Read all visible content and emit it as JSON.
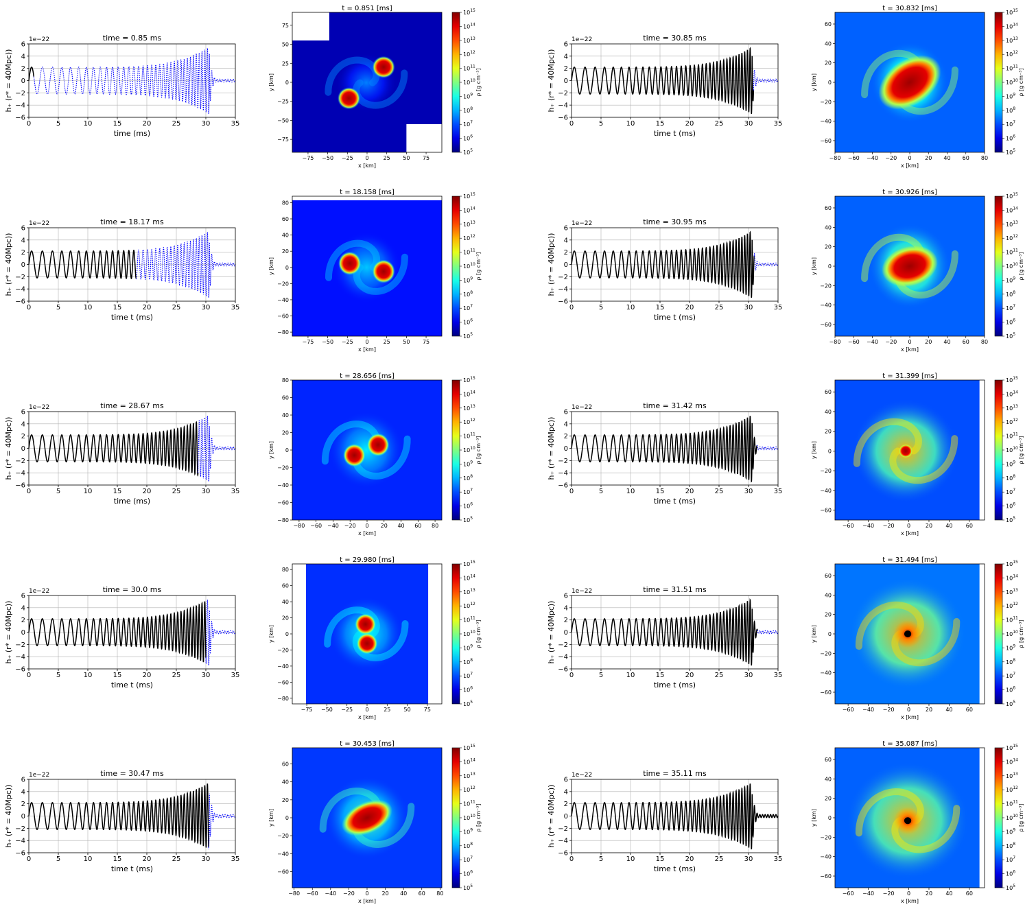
{
  "figure": {
    "layout": "5 rows x 2 panel pairs; each pair = gravitational-wave strain plot + density snapshot",
    "colormap": "jet",
    "colors": {
      "past_strain": "#000000",
      "future_strain": "#0000ff",
      "grid": "#b0b0b0",
      "black_hole": "#000000"
    }
  },
  "chart_data": [
    {
      "id": "r1c1-wave",
      "type": "line",
      "title": "time = 0.85 ms",
      "xlabel": "time (ms)",
      "ylabel": "h₊ (r* = 40Mpc))",
      "offset_text": "1e−22",
      "xlim": [
        0,
        35
      ],
      "ylim": [
        -6,
        6
      ],
      "xticks": [
        "0",
        "5",
        "10",
        "15",
        "20",
        "25",
        "30",
        "35"
      ],
      "yticks": [
        "−6",
        "−4",
        "−2",
        "0",
        "2",
        "4",
        "6"
      ],
      "grid": true,
      "t_now": 0.85,
      "series": [
        {
          "style": "solid",
          "color": "#000000",
          "t_range": [
            0,
            0.85
          ]
        },
        {
          "style": "dotted",
          "color": "#0000ff",
          "t_range": [
            0.85,
            35
          ]
        }
      ]
    },
    {
      "id": "r1c2-density",
      "type": "heatmap",
      "title": "t = 0.851 [ms]",
      "xlabel": "x [km]",
      "ylabel": "y [km]",
      "cbar_label": "ρ [g cm⁻³]",
      "colorscale": "log",
      "vmin_exp": 5,
      "vmax_exp": 15,
      "xlim": [
        -95,
        95
      ],
      "ylim": [
        -92,
        92
      ],
      "xticks": [
        "−75",
        "−50",
        "−25",
        "0",
        "25",
        "50",
        "75"
      ],
      "yticks": [
        "−75",
        "−50",
        "−25",
        "0",
        "25",
        "50",
        "75"
      ],
      "background_level": 0.05,
      "blank_regions": [
        [
          -95,
          -48,
          55,
          92
        ],
        [
          50,
          95,
          -92,
          -55
        ]
      ],
      "bodies": [
        {
          "x": -23,
          "y": -21,
          "r": 10,
          "kind": "star"
        },
        {
          "x": 21,
          "y": 20,
          "r": 10,
          "kind": "star"
        }
      ],
      "halo_level": 0.25,
      "halo_extent": 36
    },
    {
      "id": "r1c3-wave",
      "type": "line",
      "title": "time = 30.85 ms",
      "xlabel": "time t (ms)",
      "ylabel": "h₊ (r* = 40Mpc))",
      "offset_text": "1e−22",
      "xlim": [
        0,
        35
      ],
      "ylim": [
        -6,
        6
      ],
      "xticks": [
        "0",
        "5",
        "10",
        "15",
        "20",
        "25",
        "30",
        "35"
      ],
      "yticks": [
        "−6",
        "−4",
        "−2",
        "0",
        "2",
        "4",
        "6"
      ],
      "grid": true,
      "t_now": 30.85,
      "series": [
        {
          "style": "solid",
          "color": "#000000",
          "t_range": [
            0,
            30.85
          ]
        },
        {
          "style": "dotted",
          "color": "#0000ff",
          "t_range": [
            30.85,
            35
          ]
        }
      ]
    },
    {
      "id": "r1c4-density",
      "type": "heatmap",
      "title": "t = 30.832 [ms]",
      "xlabel": "x [km]",
      "ylabel": "y [km]",
      "cbar_label": "ρ [g cm⁻³]",
      "colorscale": "log",
      "vmin_exp": 5,
      "vmax_exp": 15,
      "xlim": [
        -80,
        80
      ],
      "ylim": [
        -72,
        72
      ],
      "xticks": [
        "−80",
        "−60",
        "−40",
        "−20",
        "0",
        "20",
        "40",
        "60",
        "80"
      ],
      "yticks": [
        "−60",
        "−40",
        "−20",
        "0",
        "20",
        "40",
        "60"
      ],
      "background_level": 0.22,
      "bodies": [
        {
          "x": 0,
          "y": 0,
          "r": 16,
          "kind": "merged",
          "stretch": 1.6,
          "angle": -35
        }
      ],
      "halo_level": 0.55,
      "halo_extent": 38
    },
    {
      "id": "r2c1-wave",
      "type": "line",
      "title": "time = 18.17 ms",
      "xlabel": "time t (ms)",
      "ylabel": "h₊ (r* = 40Mpc))",
      "offset_text": "1e−22",
      "xlim": [
        0,
        35
      ],
      "ylim": [
        -6,
        6
      ],
      "xticks": [
        "0",
        "5",
        "10",
        "15",
        "20",
        "25",
        "30",
        "35"
      ],
      "yticks": [
        "−6",
        "−4",
        "−2",
        "0",
        "2",
        "4",
        "6"
      ],
      "grid": true,
      "t_now": 18.17,
      "series": [
        {
          "style": "solid",
          "color": "#000000",
          "t_range": [
            0,
            18.17
          ]
        },
        {
          "style": "dotted",
          "color": "#0000ff",
          "t_range": [
            18.17,
            35
          ]
        }
      ]
    },
    {
      "id": "r2c2-density",
      "type": "heatmap",
      "title": "t = 18.158 [ms]",
      "xlabel": "x [km]",
      "ylabel": "y [km]",
      "cbar_label": "ρ [g cm⁻³]",
      "colorscale": "log",
      "vmin_exp": 5,
      "vmax_exp": 15,
      "xlim": [
        -95,
        95
      ],
      "ylim": [
        -85,
        88
      ],
      "xticks": [
        "−75",
        "−50",
        "−25",
        "0",
        "25",
        "50",
        "75"
      ],
      "yticks": [
        "−80",
        "−60",
        "−40",
        "−20",
        "0",
        "20",
        "40",
        "60",
        "80"
      ],
      "background_level": 0.14,
      "blank_regions": [
        [
          -95,
          95,
          83,
          88
        ]
      ],
      "bodies": [
        {
          "x": -22,
          "y": 5,
          "r": 10,
          "kind": "star"
        },
        {
          "x": 21,
          "y": -5,
          "r": 10,
          "kind": "star"
        }
      ],
      "halo_level": 0.32,
      "halo_extent": 40
    },
    {
      "id": "r2c3-wave",
      "type": "line",
      "title": "time = 30.95 ms",
      "xlabel": "time t (ms)",
      "ylabel": "h₊ (r* = 40Mpc))",
      "offset_text": "1e−22",
      "xlim": [
        0,
        35
      ],
      "ylim": [
        -6,
        6
      ],
      "xticks": [
        "0",
        "5",
        "10",
        "15",
        "20",
        "25",
        "30",
        "35"
      ],
      "yticks": [
        "−6",
        "−4",
        "−2",
        "0",
        "2",
        "4",
        "6"
      ],
      "grid": true,
      "t_now": 30.95,
      "series": [
        {
          "style": "solid",
          "color": "#000000",
          "t_range": [
            0,
            30.95
          ]
        },
        {
          "style": "dotted",
          "color": "#0000ff",
          "t_range": [
            30.95,
            35
          ]
        }
      ]
    },
    {
      "id": "r2c4-density",
      "type": "heatmap",
      "title": "t = 30.926 [ms]",
      "xlabel": "x [km]",
      "ylabel": "y [km]",
      "cbar_label": "ρ [g cm⁻³]",
      "colorscale": "log",
      "vmin_exp": 5,
      "vmax_exp": 15,
      "xlim": [
        -80,
        80
      ],
      "ylim": [
        -72,
        72
      ],
      "xticks": [
        "−80",
        "−60",
        "−40",
        "−20",
        "0",
        "20",
        "40",
        "60",
        "80"
      ],
      "yticks": [
        "−60",
        "−40",
        "−20",
        "0",
        "20",
        "40",
        "60"
      ],
      "background_level": 0.22,
      "bodies": [
        {
          "x": 0,
          "y": 0,
          "r": 14,
          "kind": "merged",
          "stretch": 1.5,
          "angle": -15
        }
      ],
      "halo_level": 0.6,
      "halo_extent": 40
    },
    {
      "id": "r3c1-wave",
      "type": "line",
      "title": "time = 28.67 ms",
      "xlabel": "time (ms)",
      "ylabel": "h₊ (r* = 40Mpc))",
      "offset_text": "1e−22",
      "xlim": [
        0,
        35
      ],
      "ylim": [
        -6,
        6
      ],
      "xticks": [
        "0",
        "5",
        "10",
        "15",
        "20",
        "25",
        "30",
        "35"
      ],
      "yticks": [
        "−6",
        "−4",
        "−2",
        "0",
        "2",
        "4",
        "6"
      ],
      "grid": true,
      "t_now": 28.67,
      "series": [
        {
          "style": "solid",
          "color": "#000000",
          "t_range": [
            0,
            28.67
          ]
        },
        {
          "style": "dotted",
          "color": "#0000ff",
          "t_range": [
            28.67,
            35
          ]
        }
      ]
    },
    {
      "id": "r3c2-density",
      "type": "heatmap",
      "title": "t = 28.656 [ms]",
      "xlabel": "x [km]",
      "ylabel": "y [km]",
      "cbar_label": "ρ [g cm⁻³]",
      "colorscale": "log",
      "vmin_exp": 5,
      "vmax_exp": 15,
      "xlim": [
        -88,
        88
      ],
      "ylim": [
        -80,
        80
      ],
      "xticks": [
        "−80",
        "−60",
        "−40",
        "−20",
        "0",
        "20",
        "40",
        "60",
        "80"
      ],
      "yticks": [
        "−80",
        "−60",
        "−40",
        "−20",
        "0",
        "20",
        "40",
        "60",
        "80"
      ],
      "background_level": 0.16,
      "bodies": [
        {
          "x": -15,
          "y": -6,
          "r": 9,
          "kind": "star"
        },
        {
          "x": 13,
          "y": 6,
          "r": 9,
          "kind": "star"
        }
      ],
      "halo_level": 0.36,
      "halo_extent": 40
    },
    {
      "id": "r3c3-wave",
      "type": "line",
      "title": "time = 31.42 ms",
      "xlabel": "time t (ms)",
      "ylabel": "h₊ (r* = 40Mpc))",
      "offset_text": "1e−22",
      "xlim": [
        0,
        35
      ],
      "ylim": [
        -6,
        6
      ],
      "xticks": [
        "0",
        "5",
        "10",
        "15",
        "20",
        "25",
        "30",
        "35"
      ],
      "yticks": [
        "−6",
        "−4",
        "−2",
        "0",
        "2",
        "4",
        "6"
      ],
      "grid": true,
      "t_now": 31.42,
      "series": [
        {
          "style": "solid",
          "color": "#000000",
          "t_range": [
            0,
            31.42
          ]
        },
        {
          "style": "dotted",
          "color": "#0000ff",
          "t_range": [
            31.42,
            35
          ]
        }
      ]
    },
    {
      "id": "r3c4-density",
      "type": "heatmap",
      "title": "t = 31.399 [ms]",
      "xlabel": "x [km]",
      "ylabel": "y [km]",
      "cbar_label": "ρ [g cm⁻³]",
      "colorscale": "log",
      "vmin_exp": 5,
      "vmax_exp": 15,
      "xlim": [
        -73,
        75
      ],
      "ylim": [
        -70,
        72
      ],
      "xticks": [
        "−60",
        "−40",
        "−20",
        "0",
        "20",
        "40",
        "60"
      ],
      "yticks": [
        "−60",
        "−40",
        "−20",
        "0",
        "20",
        "40",
        "60"
      ],
      "background_level": 0.2,
      "blank_regions": [
        [
          70,
          75,
          -70,
          72
        ]
      ],
      "bodies": [
        {
          "x": -3,
          "y": 0,
          "r": 5,
          "kind": "core"
        }
      ],
      "halo_level": 0.7,
      "halo_extent": 48
    },
    {
      "id": "r4c1-wave",
      "type": "line",
      "title": "time = 30.0 ms",
      "xlabel": "time t (ms)",
      "ylabel": "h₊ (r* = 40Mpc))",
      "offset_text": "1e−22",
      "xlim": [
        0,
        35
      ],
      "ylim": [
        -6,
        6
      ],
      "xticks": [
        "0",
        "5",
        "10",
        "15",
        "20",
        "25",
        "30",
        "35"
      ],
      "yticks": [
        "−6",
        "−4",
        "−2",
        "0",
        "2",
        "4",
        "6"
      ],
      "grid": true,
      "t_now": 30.0,
      "series": [
        {
          "style": "solid",
          "color": "#000000",
          "t_range": [
            0,
            30.0
          ]
        },
        {
          "style": "dotted",
          "color": "#0000ff",
          "t_range": [
            30.0,
            35
          ]
        }
      ]
    },
    {
      "id": "r4c2-density",
      "type": "heatmap",
      "title": "t = 29.980 [ms]",
      "xlabel": "x [km]",
      "ylabel": "y [km]",
      "cbar_label": "ρ [g cm⁻³]",
      "colorscale": "log",
      "vmin_exp": 5,
      "vmax_exp": 15,
      "xlim": [
        -93,
        93
      ],
      "ylim": [
        -87,
        87
      ],
      "xticks": [
        "−75",
        "−50",
        "−25",
        "0",
        "25",
        "50",
        "75"
      ],
      "yticks": [
        "−80",
        "−60",
        "−40",
        "−20",
        "0",
        "20",
        "40",
        "60",
        "80"
      ],
      "background_level": 0.17,
      "blank_regions": [
        [
          -93,
          -76,
          -87,
          87
        ],
        [
          76,
          93,
          -87,
          87
        ]
      ],
      "bodies": [
        {
          "x": -2,
          "y": 12,
          "r": 9,
          "kind": "star"
        },
        {
          "x": 0,
          "y": -12,
          "r": 9,
          "kind": "star"
        }
      ],
      "halo_level": 0.38,
      "halo_extent": 42
    },
    {
      "id": "r4c3-wave",
      "type": "line",
      "title": "time = 31.51 ms",
      "xlabel": "time t (ms)",
      "ylabel": "h₊ (r* = 40Mpc))",
      "offset_text": "1e−22",
      "xlim": [
        0,
        35
      ],
      "ylim": [
        -6,
        6
      ],
      "xticks": [
        "0",
        "5",
        "10",
        "15",
        "20",
        "25",
        "30",
        "35"
      ],
      "yticks": [
        "−6",
        "−4",
        "−2",
        "0",
        "2",
        "4",
        "6"
      ],
      "grid": true,
      "t_now": 31.51,
      "series": [
        {
          "style": "solid",
          "color": "#000000",
          "t_range": [
            0,
            31.51
          ]
        },
        {
          "style": "dotted",
          "color": "#0000ff",
          "t_range": [
            31.51,
            35
          ]
        }
      ]
    },
    {
      "id": "r4c4-density",
      "type": "heatmap",
      "title": "t = 31.494 [ms]",
      "xlabel": "x [km]",
      "ylabel": "y [km]",
      "cbar_label": "ρ [g cm⁻³]",
      "colorscale": "log",
      "vmin_exp": 5,
      "vmax_exp": 15,
      "xlim": [
        -73,
        75
      ],
      "ylim": [
        -72,
        72
      ],
      "xticks": [
        "−60",
        "−40",
        "−20",
        "0",
        "20",
        "40",
        "60"
      ],
      "yticks": [
        "−60",
        "−40",
        "−20",
        "0",
        "20",
        "40",
        "60"
      ],
      "background_level": 0.24,
      "blank_regions": [
        [
          70,
          75,
          -72,
          72
        ]
      ],
      "bodies": [
        {
          "x": -1,
          "y": 0,
          "r": 3.5,
          "kind": "black_hole"
        }
      ],
      "halo_level": 0.72,
      "halo_extent": 52
    },
    {
      "id": "r5c1-wave",
      "type": "line",
      "title": "time = 30.47 ms",
      "xlabel": "time t (ms)",
      "ylabel": "h₊ (r* = 40Mpc))",
      "offset_text": "1e−22",
      "xlim": [
        0,
        35
      ],
      "ylim": [
        -6,
        6
      ],
      "xticks": [
        "0",
        "5",
        "10",
        "15",
        "20",
        "25",
        "30",
        "35"
      ],
      "yticks": [
        "−6",
        "−4",
        "−2",
        "0",
        "2",
        "4",
        "6"
      ],
      "grid": true,
      "t_now": 30.47,
      "series": [
        {
          "style": "solid",
          "color": "#000000",
          "t_range": [
            0,
            30.47
          ]
        },
        {
          "style": "dotted",
          "color": "#0000ff",
          "t_range": [
            30.47,
            35
          ]
        }
      ]
    },
    {
      "id": "r5c2-density",
      "type": "heatmap",
      "title": "t = 30.453 [ms]",
      "xlabel": "x [km]",
      "ylabel": "y [km]",
      "cbar_label": "ρ [g cm⁻³]",
      "colorscale": "log",
      "vmin_exp": 5,
      "vmax_exp": 15,
      "xlim": [
        -82,
        82
      ],
      "ylim": [
        -78,
        78
      ],
      "xticks": [
        "−80",
        "−60",
        "−40",
        "−20",
        "0",
        "20",
        "40",
        "60",
        "80"
      ],
      "yticks": [
        "−60",
        "−40",
        "−20",
        "0",
        "20",
        "40",
        "60"
      ],
      "background_level": 0.18,
      "bodies": [
        {
          "x": 0,
          "y": 0,
          "r": 12,
          "kind": "merged",
          "stretch": 1.7,
          "angle": -25
        }
      ],
      "halo_level": 0.45,
      "halo_extent": 42
    },
    {
      "id": "r5c3-wave",
      "type": "line",
      "title": "time = 35.11 ms",
      "xlabel": "time t (ms)",
      "ylabel": "h₊ (r* = 40Mpc))",
      "offset_text": "1e−22",
      "xlim": [
        0,
        35
      ],
      "ylim": [
        -6,
        6
      ],
      "xticks": [
        "0",
        "5",
        "10",
        "15",
        "20",
        "25",
        "30",
        "35"
      ],
      "yticks": [
        "−6",
        "−4",
        "−2",
        "0",
        "2",
        "4",
        "6"
      ],
      "grid": true,
      "t_now": 35.11,
      "series": [
        {
          "style": "solid",
          "color": "#000000",
          "t_range": [
            0,
            35
          ]
        }
      ]
    },
    {
      "id": "r5c4-density",
      "type": "heatmap",
      "title": "t = 35.087 [ms]",
      "xlabel": "x [km]",
      "ylabel": "y [km]",
      "cbar_label": "ρ [g cm⁻³]",
      "colorscale": "log",
      "vmin_exp": 5,
      "vmax_exp": 15,
      "xlim": [
        -73,
        75
      ],
      "ylim": [
        -72,
        72
      ],
      "xticks": [
        "−60",
        "−40",
        "−20",
        "0",
        "20",
        "40",
        "60"
      ],
      "yticks": [
        "−60",
        "−40",
        "−20",
        "0",
        "20",
        "40",
        "60"
      ],
      "background_level": 0.22,
      "blank_regions": [
        [
          70,
          75,
          -72,
          72
        ]
      ],
      "bodies": [
        {
          "x": -1,
          "y": -3,
          "r": 3.5,
          "kind": "black_hole"
        }
      ],
      "halo_level": 0.7,
      "halo_extent": 55
    }
  ]
}
